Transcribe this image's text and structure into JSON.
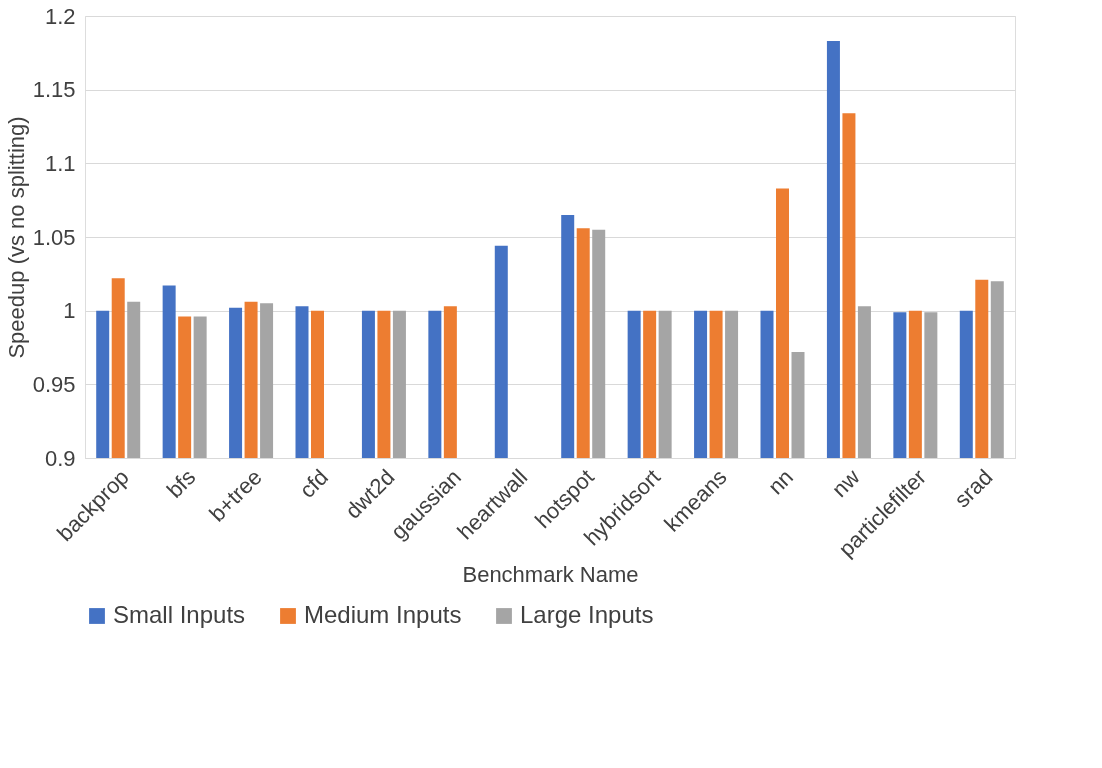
{
  "chart_data": {
    "type": "bar",
    "xlabel": "Benchmark Name",
    "ylabel": "Speedup (vs no splitting)",
    "categories": [
      "backprop",
      "bfs",
      "b+tree",
      "cfd",
      "dwt2d",
      "gaussian",
      "heartwall",
      "hotspot",
      "hybridsort",
      "kmeans",
      "nn",
      "nw",
      "particlefilter",
      "srad"
    ],
    "series": [
      {
        "name": "Small Inputs",
        "color": "#4472c4",
        "values": [
          1.0,
          1.017,
          1.002,
          1.003,
          1.0,
          1.0,
          1.044,
          1.065,
          1.0,
          1.0,
          1.0,
          1.183,
          0.999,
          1.0
        ]
      },
      {
        "name": "Medium Inputs",
        "color": "#ed7d31",
        "values": [
          1.022,
          0.996,
          1.006,
          1.0,
          1.0,
          1.003,
          null,
          1.056,
          1.0,
          1.0,
          1.083,
          1.134,
          1.0,
          1.021
        ]
      },
      {
        "name": "Large Inputs",
        "color": "#a5a5a5",
        "values": [
          1.006,
          0.996,
          1.005,
          null,
          1.0,
          null,
          null,
          1.055,
          1.0,
          1.0,
          0.972,
          1.003,
          0.999,
          1.02
        ]
      }
    ],
    "ylim": [
      0.9,
      1.2
    ],
    "yticks": [
      0.9,
      0.95,
      1,
      1.05,
      1.1,
      1.15,
      1.2
    ],
    "grid": "y",
    "legend": "bottom"
  }
}
